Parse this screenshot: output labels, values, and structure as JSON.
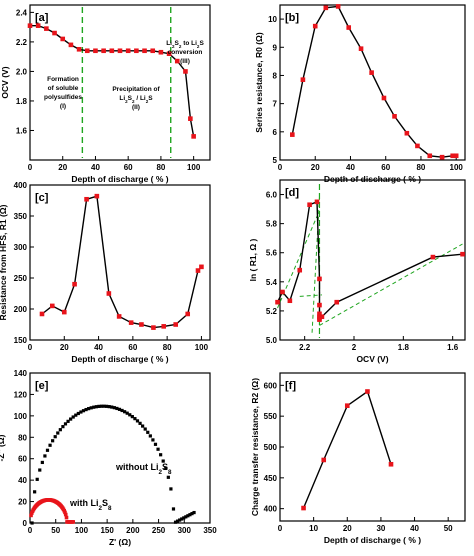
{
  "chart_data": [
    {
      "panel": "[a]",
      "type": "line",
      "xlabel": "Depth of discharge ( % )",
      "ylabel": "OCV (V)",
      "xlim": [
        0,
        110
      ],
      "ylim": [
        1.4,
        2.45
      ],
      "xticks": [
        0,
        20,
        40,
        60,
        80,
        100
      ],
      "yticks": [
        1.6,
        1.8,
        2.0,
        2.2,
        2.4
      ],
      "x": [
        0,
        5,
        10,
        15,
        20,
        25,
        30,
        35,
        40,
        45,
        50,
        55,
        60,
        65,
        70,
        75,
        80,
        85,
        90,
        95,
        98,
        100
      ],
      "y": [
        2.31,
        2.31,
        2.29,
        2.26,
        2.22,
        2.18,
        2.15,
        2.14,
        2.14,
        2.14,
        2.14,
        2.14,
        2.14,
        2.14,
        2.14,
        2.14,
        2.13,
        2.12,
        2.07,
        2.0,
        1.68,
        1.56
      ],
      "vlines": [
        32,
        86
      ],
      "annotations": [
        {
          "lines": [
            "Formation",
            "of soluble",
            "polysulfides",
            "(I)"
          ]
        },
        {
          "lines": [
            "Precipitation of",
            "Li2S2 / Li2S",
            "(II)"
          ]
        },
        {
          "lines": [
            "Li2S2 to Li2S",
            "conversion",
            "(III)"
          ]
        }
      ]
    },
    {
      "panel": "[b]",
      "type": "line",
      "xlabel": "Depth of discharge ( % )",
      "ylabel": "Series resistance, R0 (Ω)",
      "xlim": [
        0,
        105
      ],
      "ylim": [
        5,
        10.5
      ],
      "xticks": [
        0,
        20,
        40,
        60,
        80,
        100
      ],
      "yticks": [
        5,
        6,
        7,
        8,
        9,
        10
      ],
      "x": [
        7,
        13,
        20,
        26,
        33,
        39,
        46,
        52,
        59,
        65,
        72,
        78,
        85,
        92,
        98,
        100
      ],
      "y": [
        5.9,
        7.85,
        9.75,
        10.4,
        10.45,
        9.7,
        8.95,
        8.1,
        7.2,
        6.55,
        5.95,
        5.5,
        5.15,
        5.1,
        5.15,
        5.15
      ]
    },
    {
      "panel": "[c]",
      "type": "line",
      "xlabel": "Depth of discharge ( % )",
      "ylabel": "Resistance from HFS, R1 (Ω)",
      "xlim": [
        0,
        105
      ],
      "ylim": [
        150,
        400
      ],
      "xticks": [
        0,
        20,
        40,
        60,
        80,
        100
      ],
      "yticks": [
        150,
        200,
        250,
        300,
        350,
        400
      ],
      "x": [
        7,
        13,
        20,
        26,
        33,
        39,
        46,
        52,
        59,
        65,
        72,
        78,
        85,
        92,
        98,
        100
      ],
      "y": [
        192,
        205,
        195,
        240,
        377,
        382,
        225,
        188,
        178,
        175,
        170,
        172,
        175,
        192,
        262,
        268
      ]
    },
    {
      "panel": "[d]",
      "type": "scatter",
      "xlabel": "OCV (V)",
      "ylabel": "ln ( R1, Ω )",
      "xlim": [
        2.3,
        1.55
      ],
      "ylim": [
        5.0,
        6.1
      ],
      "xticks": [
        2.2,
        2.0,
        1.8,
        1.6
      ],
      "yticks": [
        5.0,
        5.2,
        5.4,
        5.6,
        5.8,
        6.0
      ],
      "x": [
        2.31,
        2.29,
        2.26,
        2.22,
        2.18,
        2.15,
        2.14,
        2.14,
        2.14,
        2.14,
        2.14,
        2.14,
        2.13,
        2.07,
        1.68,
        1.56
      ],
      "y": [
        5.26,
        5.33,
        5.27,
        5.48,
        5.93,
        5.95,
        5.42,
        5.24,
        5.18,
        5.16,
        5.14,
        5.15,
        5.16,
        5.26,
        5.57,
        5.59
      ],
      "vline": 2.14
    },
    {
      "panel": "[e]",
      "type": "scatter",
      "xlabel": "Z' (Ω)",
      "ylabel": "-Z'' (Ω)",
      "xlim": [
        0,
        350
      ],
      "ylim": [
        0,
        140
      ],
      "xticks": [
        0,
        50,
        100,
        150,
        200,
        250,
        300,
        350
      ],
      "yticks": [
        0,
        20,
        40,
        60,
        80,
        100,
        120,
        140
      ],
      "series": [
        {
          "name": "without Li2S8",
          "color": "#000000"
        },
        {
          "name": "with Li2S8",
          "color": "#e8141b"
        }
      ]
    },
    {
      "panel": "[f]",
      "type": "line",
      "xlabel": "Depth of discharge ( % )",
      "ylabel": "Charge transfer resistance, R2 (Ω)",
      "xlim": [
        0,
        55
      ],
      "ylim": [
        380,
        620
      ],
      "xticks": [
        0,
        10,
        20,
        30,
        40,
        50
      ],
      "yticks": [
        400,
        450,
        500,
        550,
        600
      ],
      "x": [
        7,
        13,
        20,
        26,
        33
      ],
      "y": [
        401,
        479,
        567,
        590,
        472
      ]
    }
  ],
  "colors": {
    "marker": "#e8141b",
    "line": "#000000",
    "guide": "#1fa51f"
  }
}
